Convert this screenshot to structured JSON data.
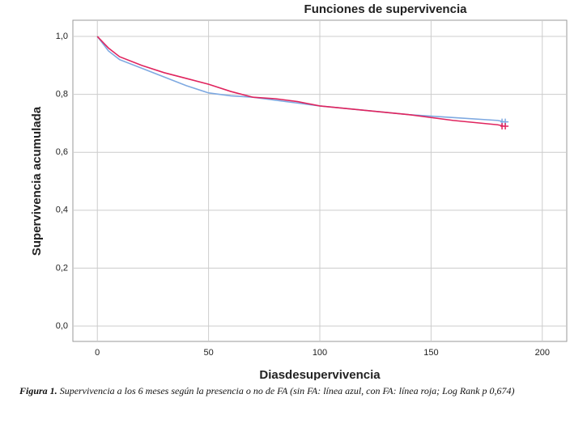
{
  "chart_data": {
    "type": "line",
    "title": "Funciones de supervivencia",
    "x_label": "Diasdesupervivencia",
    "y_label": "Supervivencia acumulada",
    "caption_label": "Figura 1.",
    "caption": "Supervivencia a los 6 meses según la presencia o no de FA (sin FA: línea azul, con FA: línea roja; Log Rank p 0,674)",
    "x": [
      0,
      5,
      10,
      20,
      30,
      40,
      50,
      60,
      70,
      80,
      90,
      100,
      120,
      140,
      160,
      180,
      183
    ],
    "series": [
      {
        "name": "sin FA",
        "color": "#7ea9e1",
        "values": [
          1.0,
          0.95,
          0.92,
          0.89,
          0.86,
          0.83,
          0.805,
          0.795,
          0.79,
          0.78,
          0.77,
          0.76,
          0.745,
          0.73,
          0.72,
          0.71,
          0.705
        ]
      },
      {
        "name": "con FA",
        "color": "#e0245e",
        "values": [
          1.0,
          0.96,
          0.93,
          0.9,
          0.875,
          0.855,
          0.835,
          0.81,
          0.79,
          0.785,
          0.775,
          0.76,
          0.745,
          0.73,
          0.71,
          0.695,
          0.69
        ]
      }
    ],
    "xlim": [
      -11,
      211
    ],
    "xticks": [
      0,
      50,
      100,
      150,
      200
    ],
    "ylim": [
      -0.053,
      1.056
    ],
    "yticks": [
      {
        "value": 0,
        "label": "0,0"
      },
      {
        "value": 0.2,
        "label": "0,2"
      },
      {
        "value": 0.4,
        "label": "0,4"
      },
      {
        "value": 0.6,
        "label": "0,6"
      },
      {
        "value": 0.8,
        "label": "0,8"
      },
      {
        "value": 1.0,
        "label": "1,0"
      }
    ],
    "grid": true
  }
}
